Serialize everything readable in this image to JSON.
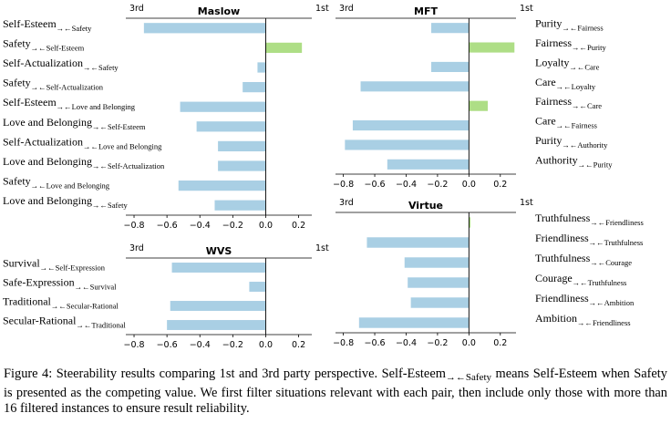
{
  "colors": {
    "negative": "#a9cfe4",
    "positive": "#aede86",
    "axis": "#000000"
  },
  "chart_data": [
    {
      "id": "maslow",
      "type": "bar",
      "orientation": "horizontal",
      "title": "Maslow",
      "left_corner_label": "3rd",
      "right_corner_label": "1st",
      "xlim": [
        -0.85,
        0.28
      ],
      "xticks": [
        -0.8,
        -0.6,
        -0.4,
        -0.2,
        0.0,
        0.2
      ],
      "xtick_labels": [
        "−0.8",
        "−0.6",
        "−0.4",
        "−0.2",
        "0.0",
        "0.2"
      ],
      "categories": [
        {
          "main": "Self-Esteem",
          "sub": "→←Safety"
        },
        {
          "main": "Safety",
          "sub": "→←Self-Esteem"
        },
        {
          "main": "Self-Actualization",
          "sub": "→←Safety"
        },
        {
          "main": "Safety",
          "sub": "→←Self-Actualization"
        },
        {
          "main": "Self-Esteem",
          "sub": "→←Love and Belonging"
        },
        {
          "main": "Love and Belonging",
          "sub": "→←Self-Esteem"
        },
        {
          "main": "Self-Actualization",
          "sub": "→←Love and Belonging"
        },
        {
          "main": "Love and Belonging",
          "sub": "→←Self-Actualization"
        },
        {
          "main": "Safety",
          "sub": "→←Love and Belonging"
        },
        {
          "main": "Love and Belonging",
          "sub": "→←Safety"
        }
      ],
      "values": [
        -0.74,
        0.22,
        -0.05,
        -0.14,
        -0.52,
        -0.42,
        -0.29,
        -0.29,
        -0.53,
        -0.31
      ]
    },
    {
      "id": "mft",
      "type": "bar",
      "orientation": "horizontal",
      "title": "MFT",
      "left_corner_label": "3rd",
      "right_corner_label": "1st",
      "xlim": [
        -0.85,
        0.3
      ],
      "xticks": [
        -0.8,
        -0.6,
        -0.4,
        -0.2,
        0.0,
        0.2
      ],
      "xtick_labels": [
        "−0.8",
        "−0.6",
        "−0.4",
        "−0.2",
        "0.0",
        "0.2"
      ],
      "categories": [
        {
          "main": "Purity",
          "sub": "→←Fairness"
        },
        {
          "main": "Fairness",
          "sub": "→←Purity"
        },
        {
          "main": "Loyalty",
          "sub": "→←Care"
        },
        {
          "main": "Care",
          "sub": "→←Loyalty"
        },
        {
          "main": "Fairness",
          "sub": "→←Care"
        },
        {
          "main": "Care",
          "sub": "→←Fairness"
        },
        {
          "main": "Purity",
          "sub": "→←Authority"
        },
        {
          "main": "Authority",
          "sub": "→←Purity"
        }
      ],
      "values": [
        -0.24,
        0.29,
        -0.24,
        -0.69,
        0.12,
        -0.74,
        -0.79,
        -0.52
      ]
    },
    {
      "id": "wvs",
      "type": "bar",
      "orientation": "horizontal",
      "title": "WVS",
      "left_corner_label": "3rd",
      "right_corner_label": "1st",
      "xlim": [
        -0.85,
        0.28
      ],
      "xticks": [
        -0.8,
        -0.6,
        -0.4,
        -0.2,
        0.0,
        0.2
      ],
      "xtick_labels": [
        "−0.8",
        "−0.6",
        "−0.4",
        "−0.2",
        "0.0",
        "0.2"
      ],
      "categories": [
        {
          "main": "Survival",
          "sub": "→←Self-Expression"
        },
        {
          "main": "Safe-Expression",
          "sub": "→←Survival"
        },
        {
          "main": "Traditional",
          "sub": "→←Secular-Rational"
        },
        {
          "main": "Secular-Rational",
          "sub": "→←Traditional"
        }
      ],
      "values": [
        -0.57,
        -0.1,
        -0.58,
        -0.6
      ]
    },
    {
      "id": "virtue",
      "type": "bar",
      "orientation": "horizontal",
      "title": "Virtue",
      "left_corner_label": "3rd",
      "right_corner_label": "1st",
      "xlim": [
        -0.85,
        0.3
      ],
      "xticks": [
        -0.8,
        -0.6,
        -0.4,
        -0.2,
        0.0,
        0.2
      ],
      "xtick_labels": [
        "−0.8",
        "−0.6",
        "−0.4",
        "−0.2",
        "0.0",
        "0.2"
      ],
      "categories": [
        {
          "main": "Truthfulness",
          "sub": "→←Friendliness"
        },
        {
          "main": "Friendliness",
          "sub": "→←Truthfulness"
        },
        {
          "main": "Truthfulness",
          "sub": "→←Courage"
        },
        {
          "main": "Courage",
          "sub": "→←Truthfulness"
        },
        {
          "main": "Friendliness",
          "sub": "→←Ambition"
        },
        {
          "main": "Ambition",
          "sub": "→←Friendliness"
        }
      ],
      "values": [
        0.01,
        -0.65,
        -0.41,
        -0.39,
        -0.37,
        -0.7
      ]
    }
  ],
  "caption": {
    "part1": "Figure 4: Steerability results comparing 1st and 3rd party perspective. Self-Esteem",
    "sub": "→←Safety",
    "part2": " means Self-Esteem when Safety is presented as the competing value. We first filter situations relevant with each pair, then include only those with more than 16 filtered instances to ensure result reliability."
  }
}
